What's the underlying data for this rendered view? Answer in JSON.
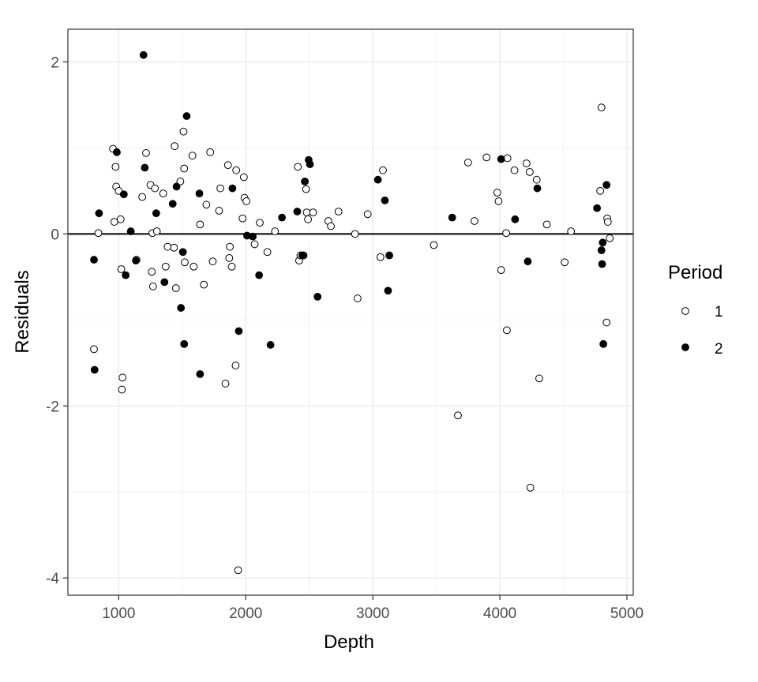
{
  "chart_data": {
    "type": "scatter",
    "xlabel": "Depth",
    "ylabel": "Residuals",
    "xlim": [
      600,
      5050
    ],
    "ylim": [
      -4.2,
      2.38
    ],
    "x_ticks": [
      1000,
      2000,
      3000,
      4000,
      5000
    ],
    "y_ticks": [
      -4,
      -2,
      0,
      2
    ],
    "y_tick_labels": [
      "-4",
      "-2",
      "0",
      "2"
    ],
    "grid": true,
    "reference_line_y": 0,
    "legend": {
      "title": "Period",
      "position": "right",
      "items": [
        {
          "label": "1",
          "marker": "open-circle"
        },
        {
          "label": "2",
          "marker": "filled-circle"
        }
      ]
    },
    "series": [
      {
        "name": "1",
        "marker": "open-circle",
        "points": [
          [
            805,
            -1.34
          ],
          [
            840,
            0.01
          ],
          [
            955,
            0.99
          ],
          [
            965,
            0.14
          ],
          [
            975,
            0.78
          ],
          [
            980,
            0.55
          ],
          [
            1000,
            0.5
          ],
          [
            1015,
            0.17
          ],
          [
            1020,
            -0.41
          ],
          [
            1025,
            -1.81
          ],
          [
            1030,
            -1.67
          ],
          [
            1140,
            -0.3
          ],
          [
            1185,
            0.43
          ],
          [
            1215,
            0.94
          ],
          [
            1250,
            0.57
          ],
          [
            1260,
            -0.44
          ],
          [
            1265,
            0.01
          ],
          [
            1270,
            -0.61
          ],
          [
            1285,
            0.53
          ],
          [
            1300,
            0.03
          ],
          [
            1350,
            0.47
          ],
          [
            1370,
            -0.38
          ],
          [
            1385,
            -0.15
          ],
          [
            1435,
            -0.16
          ],
          [
            1440,
            1.02
          ],
          [
            1450,
            -0.63
          ],
          [
            1485,
            0.61
          ],
          [
            1510,
            1.19
          ],
          [
            1515,
            0.76
          ],
          [
            1520,
            -0.33
          ],
          [
            1580,
            0.91
          ],
          [
            1590,
            -0.38
          ],
          [
            1640,
            0.11
          ],
          [
            1670,
            -0.59
          ],
          [
            1690,
            0.34
          ],
          [
            1720,
            0.95
          ],
          [
            1740,
            -0.32
          ],
          [
            1790,
            0.27
          ],
          [
            1800,
            0.53
          ],
          [
            1840,
            -1.74
          ],
          [
            1860,
            0.8
          ],
          [
            1870,
            -0.28
          ],
          [
            1875,
            -0.15
          ],
          [
            1890,
            -0.38
          ],
          [
            1920,
            -1.53
          ],
          [
            1925,
            0.74
          ],
          [
            1940,
            -3.91
          ],
          [
            1975,
            0.18
          ],
          [
            1985,
            0.66
          ],
          [
            1990,
            0.42
          ],
          [
            2005,
            0.38
          ],
          [
            2070,
            -0.12
          ],
          [
            2110,
            0.13
          ],
          [
            2170,
            -0.21
          ],
          [
            2230,
            0.03
          ],
          [
            2410,
            0.78
          ],
          [
            2420,
            -0.31
          ],
          [
            2430,
            -0.25
          ],
          [
            2475,
            0.52
          ],
          [
            2480,
            0.25
          ],
          [
            2490,
            0.17
          ],
          [
            2530,
            0.25
          ],
          [
            2650,
            0.15
          ],
          [
            2670,
            0.09
          ],
          [
            2730,
            0.26
          ],
          [
            2860,
            0.0
          ],
          [
            2880,
            -0.75
          ],
          [
            2960,
            0.23
          ],
          [
            3060,
            -0.27
          ],
          [
            3080,
            0.74
          ],
          [
            3480,
            -0.13
          ],
          [
            3670,
            -2.11
          ],
          [
            3750,
            0.83
          ],
          [
            3800,
            0.15
          ],
          [
            3895,
            0.89
          ],
          [
            3980,
            0.48
          ],
          [
            3990,
            0.38
          ],
          [
            4010,
            -0.42
          ],
          [
            4050,
            0.01
          ],
          [
            4055,
            -1.12
          ],
          [
            4060,
            0.88
          ],
          [
            4115,
            0.74
          ],
          [
            4210,
            0.82
          ],
          [
            4235,
            0.72
          ],
          [
            4240,
            -2.95
          ],
          [
            4290,
            0.63
          ],
          [
            4310,
            -1.68
          ],
          [
            4370,
            0.11
          ],
          [
            4510,
            -0.33
          ],
          [
            4560,
            0.03
          ],
          [
            4790,
            0.5
          ],
          [
            4800,
            1.47
          ],
          [
            4840,
            -1.03
          ],
          [
            4845,
            0.18
          ],
          [
            4850,
            0.14
          ],
          [
            4865,
            -0.05
          ]
        ]
      },
      {
        "name": "2",
        "marker": "filled-circle",
        "points": [
          [
            805,
            -0.3
          ],
          [
            810,
            -1.58
          ],
          [
            845,
            0.24
          ],
          [
            985,
            0.95
          ],
          [
            1040,
            0.46
          ],
          [
            1055,
            -0.48
          ],
          [
            1095,
            0.03
          ],
          [
            1135,
            -0.31
          ],
          [
            1195,
            2.08
          ],
          [
            1205,
            0.77
          ],
          [
            1295,
            0.24
          ],
          [
            1360,
            -0.56
          ],
          [
            1425,
            0.35
          ],
          [
            1455,
            0.55
          ],
          [
            1490,
            -0.86
          ],
          [
            1505,
            -0.21
          ],
          [
            1515,
            -1.28
          ],
          [
            1535,
            1.37
          ],
          [
            1635,
            0.47
          ],
          [
            1640,
            -1.63
          ],
          [
            1895,
            0.53
          ],
          [
            1945,
            -1.13
          ],
          [
            2010,
            -0.02
          ],
          [
            2055,
            -0.03
          ],
          [
            2105,
            -0.48
          ],
          [
            2195,
            -1.29
          ],
          [
            2285,
            0.19
          ],
          [
            2405,
            0.26
          ],
          [
            2445,
            -0.25
          ],
          [
            2455,
            -0.25
          ],
          [
            2465,
            0.61
          ],
          [
            2495,
            0.86
          ],
          [
            2505,
            0.81
          ],
          [
            2565,
            -0.73
          ],
          [
            3040,
            0.63
          ],
          [
            3095,
            0.39
          ],
          [
            3120,
            -0.66
          ],
          [
            3130,
            -0.25
          ],
          [
            3625,
            0.19
          ],
          [
            4010,
            0.87
          ],
          [
            4120,
            0.17
          ],
          [
            4220,
            -0.32
          ],
          [
            4295,
            0.53
          ],
          [
            4765,
            0.3
          ],
          [
            4800,
            -0.19
          ],
          [
            4805,
            -0.35
          ],
          [
            4810,
            -0.1
          ],
          [
            4815,
            -1.28
          ],
          [
            4840,
            0.57
          ]
        ]
      }
    ]
  }
}
